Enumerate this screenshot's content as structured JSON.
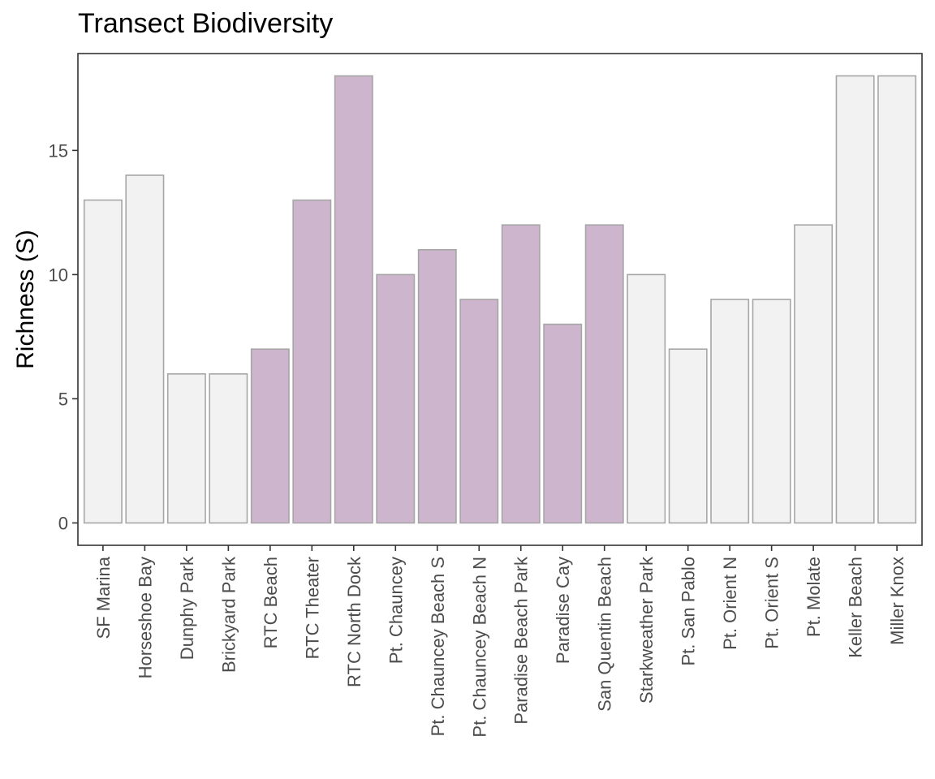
{
  "chart_data": {
    "type": "bar",
    "title": "Transect Biodiversity",
    "xlabel": "",
    "ylabel": "Richness (S)",
    "ylim": [
      -0.9,
      18.9
    ],
    "yticks": [
      0,
      5,
      10,
      15
    ],
    "grid": false,
    "legend": "none",
    "categories": [
      "SF Marina",
      "Horseshoe Bay",
      "Dunphy Park",
      "Brickyard Park",
      "RTC Beach",
      "RTC Theater",
      "RTC North Dock",
      "Pt. Chauncey",
      "Pt. Chauncey Beach S",
      "Pt. Chauncey Beach N",
      "Paradise Beach Park",
      "Paradise Cay",
      "San Quentin Beach",
      "Starkweather Park",
      "Pt. San Pablo",
      "Pt. Orient N",
      "Pt. Orient S",
      "Pt. Molate",
      "Keller Beach",
      "Miller Knox"
    ],
    "values": [
      13,
      14,
      6,
      6,
      7,
      13,
      18,
      10,
      11,
      9,
      12,
      8,
      12,
      10,
      7,
      9,
      9,
      12,
      18,
      18
    ],
    "highlighted": [
      false,
      false,
      false,
      false,
      true,
      true,
      true,
      true,
      true,
      true,
      true,
      true,
      true,
      false,
      false,
      false,
      false,
      false,
      false,
      false
    ],
    "colors": {
      "highlight": "#cdb5cd",
      "default": "#f2f2f2",
      "bar_outline": "#a6a6a6",
      "panel_border": "#333333",
      "tick_text": "#4d4d4d"
    }
  }
}
